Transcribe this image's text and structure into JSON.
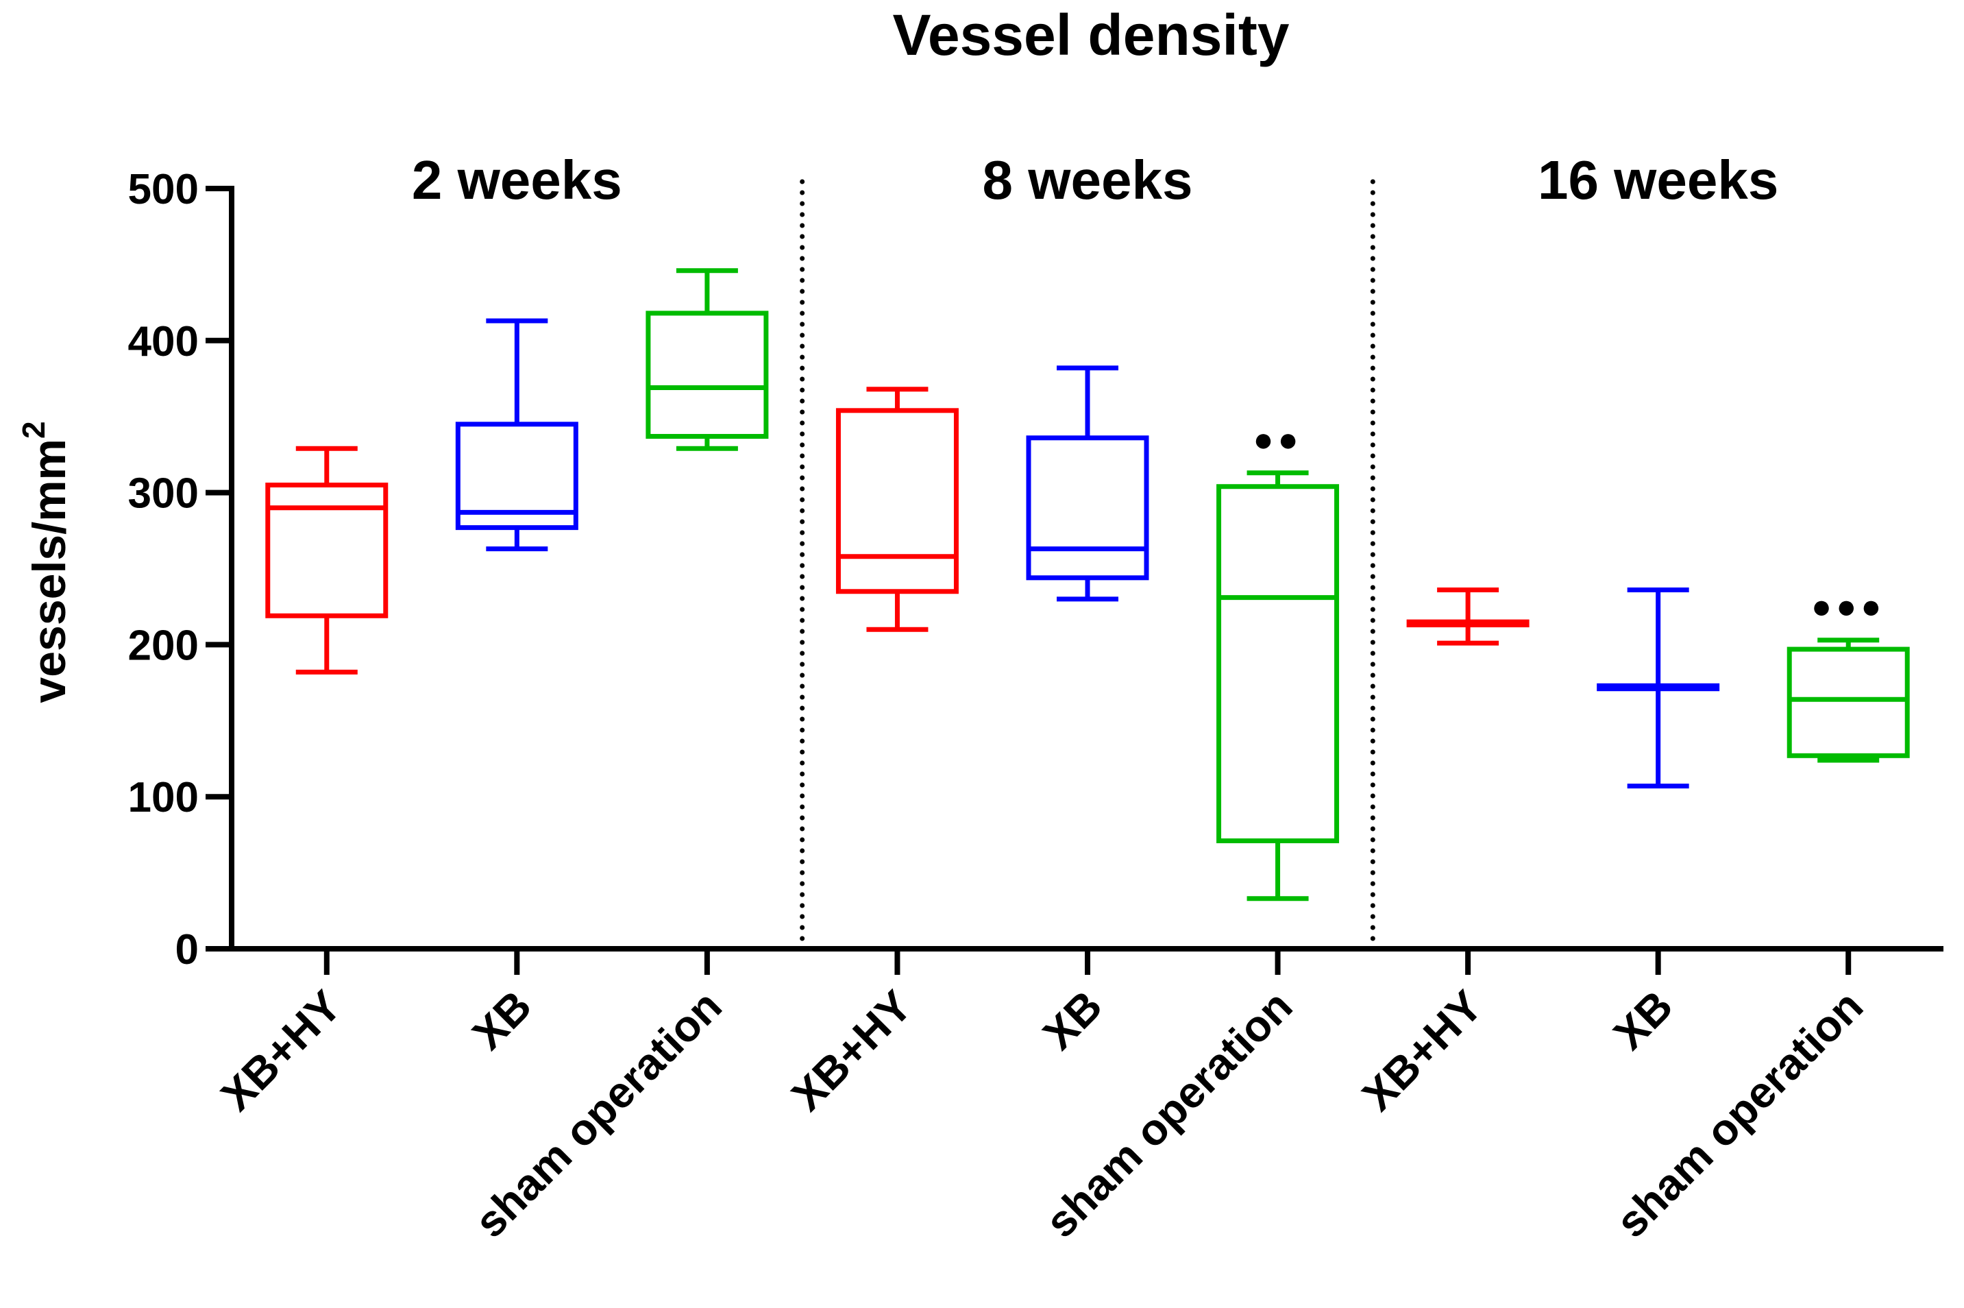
{
  "chart_data": {
    "type": "box",
    "title": "Vessel density",
    "ylabel": "vessels/mm",
    "ylabel_superscript": "2",
    "xlabel": "",
    "ylim": [
      0,
      500
    ],
    "yticks": [
      0,
      100,
      200,
      300,
      400,
      500
    ],
    "grid": false,
    "colors": {
      "XB+HY": "#ff0000",
      "XB": "#0000ff",
      "sham operation": "#00bb00"
    },
    "groups": [
      {
        "label": "2 weeks",
        "boxes": [
          {
            "category": "XB+HY",
            "whisker_low": 182,
            "q1": 219,
            "median": 290,
            "q3": 305,
            "whisker_high": 329,
            "marker": ""
          },
          {
            "category": "XB",
            "whisker_low": 263,
            "q1": 277,
            "median": 287,
            "q3": 345,
            "whisker_high": 413,
            "marker": ""
          },
          {
            "category": "sham operation",
            "whisker_low": 329,
            "q1": 337,
            "median": 369,
            "q3": 418,
            "whisker_high": 446,
            "marker": ""
          }
        ]
      },
      {
        "label": "8 weeks",
        "boxes": [
          {
            "category": "XB+HY",
            "whisker_low": 210,
            "q1": 235,
            "median": 258,
            "q3": 354,
            "whisker_high": 368,
            "marker": ""
          },
          {
            "category": "XB",
            "whisker_low": 230,
            "q1": 244,
            "median": 263,
            "q3": 336,
            "whisker_high": 382,
            "marker": ""
          },
          {
            "category": "sham operation",
            "whisker_low": 33,
            "q1": 71,
            "median": 231,
            "q3": 304,
            "whisker_high": 313,
            "marker": "●●"
          }
        ]
      },
      {
        "label": "16 weeks",
        "boxes": [
          {
            "category": "XB+HY",
            "whisker_low": 201,
            "q1": 213,
            "median": 214,
            "q3": 215,
            "whisker_high": 236,
            "marker": ""
          },
          {
            "category": "XB",
            "whisker_low": 107,
            "q1": 171,
            "median": 172,
            "q3": 173,
            "whisker_high": 236,
            "marker": ""
          },
          {
            "category": "sham operation",
            "whisker_low": 124,
            "q1": 127,
            "median": 164,
            "q3": 197,
            "whisker_high": 203,
            "marker": "●●●"
          }
        ]
      }
    ]
  }
}
